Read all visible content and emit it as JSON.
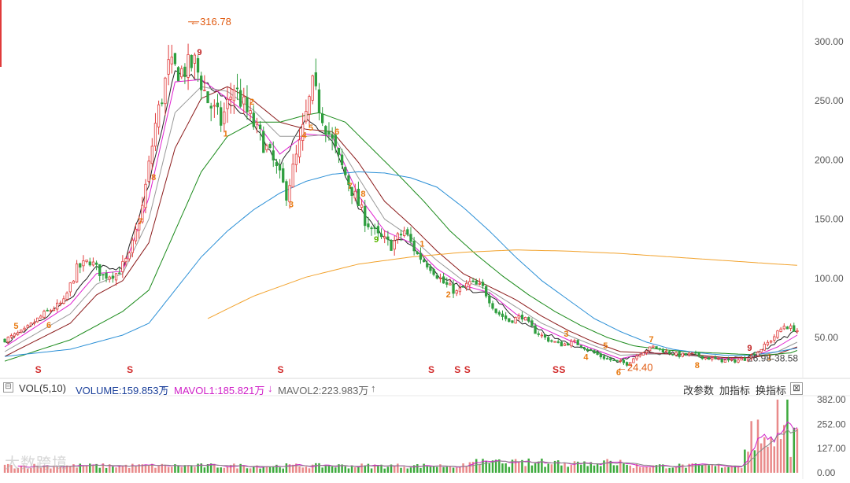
{
  "colors": {
    "up": "#e03b3b",
    "down": "#2f9e3f",
    "ma5": "#222222",
    "ma10": "#e020d0",
    "ma20": "#999999",
    "ma30": "#8b1a1a",
    "ma60": "#1a8a1a",
    "ma120": "#2a8fd6",
    "ma250": "#f2a22c",
    "vol_up": "#e98a8a",
    "vol_down": "#3daa3d",
    "signal": "#e87a10",
    "signal9": "#5cb800",
    "signal9b": "#c02020"
  },
  "annotations": {
    "high_label": "316.78",
    "low_label": "24.40",
    "range_label": "26.98-38.58"
  },
  "volume_panel": {
    "collapse_icon": "⊟",
    "vol_label": "VOL(5,10)",
    "volume_label": "VOLUME:159.853万",
    "mavol1_label": "MAVOL1:185.821万",
    "mavol2_label": "MAVOL2:223.983万",
    "vol_up_arrow": "↑",
    "mavol1_arrow": "↓",
    "mavol2_arrow": "↑",
    "btn_params": "改参数",
    "btn_add": "加指标",
    "btn_switch": "换指标",
    "close": "⊠",
    "y_ticks": [
      "382.00",
      "252.00",
      "127.00",
      "0.00"
    ]
  },
  "watermark": "大数跨境",
  "chart_data": [
    {
      "type": "candlestick",
      "description_series": [
        "MA5",
        "MA10",
        "MA20",
        "MA30",
        "MA60",
        "MA120",
        "MA250"
      ],
      "y_axis_ticks": [
        "300.00",
        "250.00",
        "200.00",
        "150.00",
        "100.00",
        "50.00"
      ],
      "ylim": [
        20,
        330
      ],
      "high": 316.78,
      "low": 24.4,
      "price_path": [
        [
          0,
          48
        ],
        [
          6,
          56
        ],
        [
          12,
          70
        ],
        [
          18,
          80
        ],
        [
          22,
          108
        ],
        [
          26,
          115
        ],
        [
          30,
          102
        ],
        [
          34,
          104
        ],
        [
          38,
          118
        ],
        [
          42,
          160
        ],
        [
          46,
          230
        ],
        [
          50,
          278
        ],
        [
          54,
          275
        ],
        [
          58,
          282
        ],
        [
          62,
          250
        ],
        [
          66,
          232
        ],
        [
          70,
          262
        ],
        [
          74,
          240
        ],
        [
          78,
          220
        ],
        [
          82,
          198
        ],
        [
          86,
          172
        ],
        [
          90,
          212
        ],
        [
          94,
          262
        ],
        [
          98,
          230
        ],
        [
          102,
          200
        ],
        [
          106,
          175
        ],
        [
          110,
          150
        ],
        [
          114,
          135
        ],
        [
          118,
          128
        ],
        [
          122,
          140
        ],
        [
          126,
          120
        ],
        [
          130,
          110
        ],
        [
          134,
          96
        ],
        [
          138,
          88
        ],
        [
          142,
          96
        ],
        [
          146,
          92
        ],
        [
          150,
          72
        ],
        [
          154,
          64
        ],
        [
          158,
          68
        ],
        [
          162,
          55
        ],
        [
          166,
          48
        ],
        [
          170,
          44
        ],
        [
          174,
          46
        ],
        [
          178,
          40
        ],
        [
          182,
          34
        ],
        [
          186,
          30
        ],
        [
          190,
          28
        ],
        [
          194,
          37
        ],
        [
          198,
          42
        ],
        [
          202,
          38
        ],
        [
          206,
          35
        ],
        [
          210,
          36
        ],
        [
          214,
          33
        ],
        [
          218,
          31
        ],
        [
          222,
          30
        ],
        [
          226,
          32
        ],
        [
          230,
          38
        ],
        [
          234,
          48
        ],
        [
          238,
          60
        ],
        [
          242,
          56
        ]
      ],
      "ma_path": {
        "MA5": [
          [
            0,
            45
          ],
          [
            20,
            82
          ],
          [
            28,
            110
          ],
          [
            36,
            108
          ],
          [
            44,
            180
          ],
          [
            52,
            275
          ],
          [
            60,
            268
          ],
          [
            68,
            250
          ],
          [
            76,
            230
          ],
          [
            84,
            195
          ],
          [
            92,
            235
          ],
          [
            100,
            215
          ],
          [
            108,
            160
          ],
          [
            116,
            135
          ],
          [
            124,
            130
          ],
          [
            132,
            102
          ],
          [
            140,
            92
          ],
          [
            148,
            86
          ],
          [
            156,
            66
          ],
          [
            164,
            55
          ],
          [
            172,
            45
          ],
          [
            180,
            38
          ],
          [
            188,
            30
          ],
          [
            196,
            38
          ],
          [
            204,
            36
          ],
          [
            212,
            34
          ],
          [
            220,
            31
          ],
          [
            228,
            34
          ],
          [
            236,
            46
          ],
          [
            242,
            56
          ]
        ],
        "MA10": [
          [
            0,
            42
          ],
          [
            20,
            78
          ],
          [
            28,
            104
          ],
          [
            36,
            106
          ],
          [
            44,
            168
          ],
          [
            52,
            266
          ],
          [
            60,
            268
          ],
          [
            68,
            252
          ],
          [
            76,
            235
          ],
          [
            84,
            205
          ],
          [
            92,
            222
          ],
          [
            100,
            220
          ],
          [
            108,
            170
          ],
          [
            116,
            140
          ],
          [
            124,
            130
          ],
          [
            132,
            108
          ],
          [
            140,
            94
          ],
          [
            148,
            88
          ],
          [
            156,
            70
          ],
          [
            164,
            58
          ],
          [
            172,
            48
          ],
          [
            180,
            40
          ],
          [
            188,
            32
          ],
          [
            196,
            37
          ],
          [
            204,
            36
          ],
          [
            212,
            34
          ],
          [
            220,
            32
          ],
          [
            228,
            33
          ],
          [
            236,
            42
          ],
          [
            242,
            52
          ]
        ],
        "MA20": [
          [
            0,
            38
          ],
          [
            20,
            70
          ],
          [
            28,
            95
          ],
          [
            36,
            104
          ],
          [
            44,
            150
          ],
          [
            52,
            240
          ],
          [
            60,
            262
          ],
          [
            68,
            258
          ],
          [
            76,
            242
          ],
          [
            84,
            220
          ],
          [
            92,
            220
          ],
          [
            100,
            222
          ],
          [
            108,
            185
          ],
          [
            116,
            150
          ],
          [
            124,
            135
          ],
          [
            132,
            115
          ],
          [
            140,
            98
          ],
          [
            148,
            90
          ],
          [
            156,
            76
          ],
          [
            164,
            62
          ],
          [
            172,
            52
          ],
          [
            180,
            43
          ],
          [
            188,
            35
          ],
          [
            196,
            36
          ],
          [
            204,
            36
          ],
          [
            212,
            34
          ],
          [
            220,
            33
          ],
          [
            228,
            33
          ],
          [
            236,
            38
          ],
          [
            242,
            46
          ]
        ],
        "MA30": [
          [
            0,
            34
          ],
          [
            20,
            62
          ],
          [
            28,
            86
          ],
          [
            36,
            98
          ],
          [
            44,
            130
          ],
          [
            52,
            210
          ],
          [
            60,
            252
          ],
          [
            68,
            262
          ],
          [
            76,
            250
          ],
          [
            84,
            232
          ],
          [
            92,
            226
          ],
          [
            100,
            224
          ],
          [
            108,
            198
          ],
          [
            116,
            165
          ],
          [
            124,
            145
          ],
          [
            132,
            123
          ],
          [
            140,
            104
          ],
          [
            148,
            93
          ],
          [
            156,
            82
          ],
          [
            164,
            68
          ],
          [
            172,
            56
          ],
          [
            180,
            46
          ],
          [
            188,
            38
          ],
          [
            196,
            37
          ],
          [
            204,
            36
          ],
          [
            212,
            35
          ],
          [
            220,
            33
          ],
          [
            228,
            33
          ],
          [
            236,
            36
          ],
          [
            242,
            42
          ]
        ],
        "MA60": [
          [
            0,
            30
          ],
          [
            20,
            48
          ],
          [
            36,
            72
          ],
          [
            44,
            90
          ],
          [
            52,
            140
          ],
          [
            60,
            190
          ],
          [
            68,
            220
          ],
          [
            76,
            232
          ],
          [
            84,
            232
          ],
          [
            92,
            238
          ],
          [
            96,
            240
          ],
          [
            104,
            232
          ],
          [
            112,
            210
          ],
          [
            120,
            188
          ],
          [
            128,
            165
          ],
          [
            136,
            140
          ],
          [
            144,
            120
          ],
          [
            152,
            102
          ],
          [
            160,
            86
          ],
          [
            168,
            72
          ],
          [
            176,
            60
          ],
          [
            184,
            50
          ],
          [
            192,
            43
          ],
          [
            200,
            40
          ],
          [
            208,
            38
          ],
          [
            216,
            37
          ],
          [
            224,
            36
          ],
          [
            232,
            35
          ],
          [
            240,
            37
          ],
          [
            242,
            39
          ]
        ],
        "MA120": [
          [
            0,
            34
          ],
          [
            20,
            40
          ],
          [
            36,
            52
          ],
          [
            44,
            62
          ],
          [
            52,
            90
          ],
          [
            60,
            118
          ],
          [
            68,
            140
          ],
          [
            76,
            158
          ],
          [
            84,
            172
          ],
          [
            92,
            182
          ],
          [
            100,
            188
          ],
          [
            108,
            190
          ],
          [
            116,
            189
          ],
          [
            124,
            185
          ],
          [
            132,
            177
          ],
          [
            140,
            160
          ],
          [
            148,
            140
          ],
          [
            156,
            118
          ],
          [
            164,
            98
          ],
          [
            172,
            82
          ],
          [
            180,
            66
          ],
          [
            188,
            55
          ],
          [
            196,
            46
          ],
          [
            204,
            40
          ],
          [
            212,
            37
          ],
          [
            220,
            35
          ],
          [
            228,
            35
          ],
          [
            236,
            38
          ],
          [
            242,
            41
          ]
        ],
        "MA250": [
          [
            62,
            66
          ],
          [
            76,
            85
          ],
          [
            92,
            101
          ],
          [
            108,
            112
          ],
          [
            124,
            118
          ],
          [
            140,
            122
          ],
          [
            156,
            124
          ],
          [
            172,
            123
          ],
          [
            188,
            121
          ],
          [
            204,
            118
          ],
          [
            220,
            115
          ],
          [
            236,
            112
          ],
          [
            242,
            111
          ]
        ]
      },
      "signal_markers": [
        "5",
        "6",
        "7",
        "8",
        "9",
        "1",
        "2",
        "3",
        "4"
      ]
    },
    {
      "type": "bar",
      "name": "VOLUME",
      "ylim": [
        0,
        382
      ],
      "y_ticks": [
        0,
        127,
        252,
        382
      ]
    }
  ]
}
